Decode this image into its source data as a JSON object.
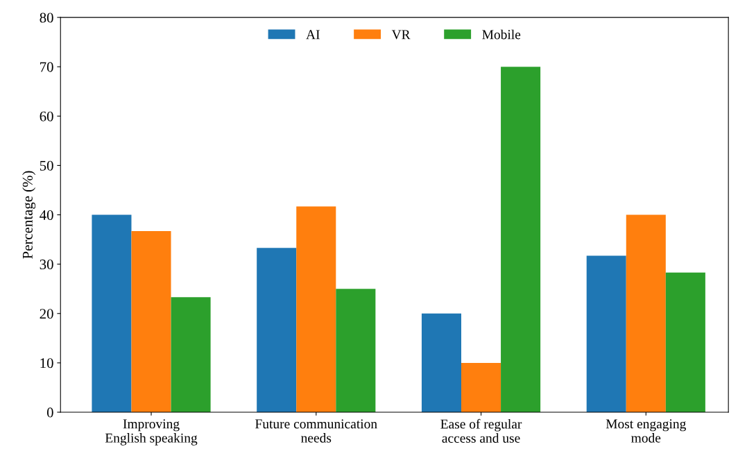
{
  "chart_data": {
    "type": "bar",
    "ylabel": "Percentage (%)",
    "categories": [
      "Improving\nEnglish speaking",
      "Future communication\nneeds",
      "Ease of regular\naccess and use",
      "Most engaging\nmode"
    ],
    "series": [
      {
        "name": "AI",
        "color": "#1f77b4",
        "values": [
          40,
          33.3,
          20,
          31.7
        ]
      },
      {
        "name": "VR",
        "color": "#ff7f0e",
        "values": [
          36.7,
          41.7,
          10,
          40
        ]
      },
      {
        "name": "Mobile",
        "color": "#2ca02c",
        "values": [
          23.3,
          25,
          70,
          28.3
        ]
      }
    ],
    "ylim": [
      0,
      80
    ],
    "yticks": [
      0,
      10,
      20,
      30,
      40,
      50,
      60,
      70,
      80
    ],
    "grid": false,
    "legend": "top"
  }
}
